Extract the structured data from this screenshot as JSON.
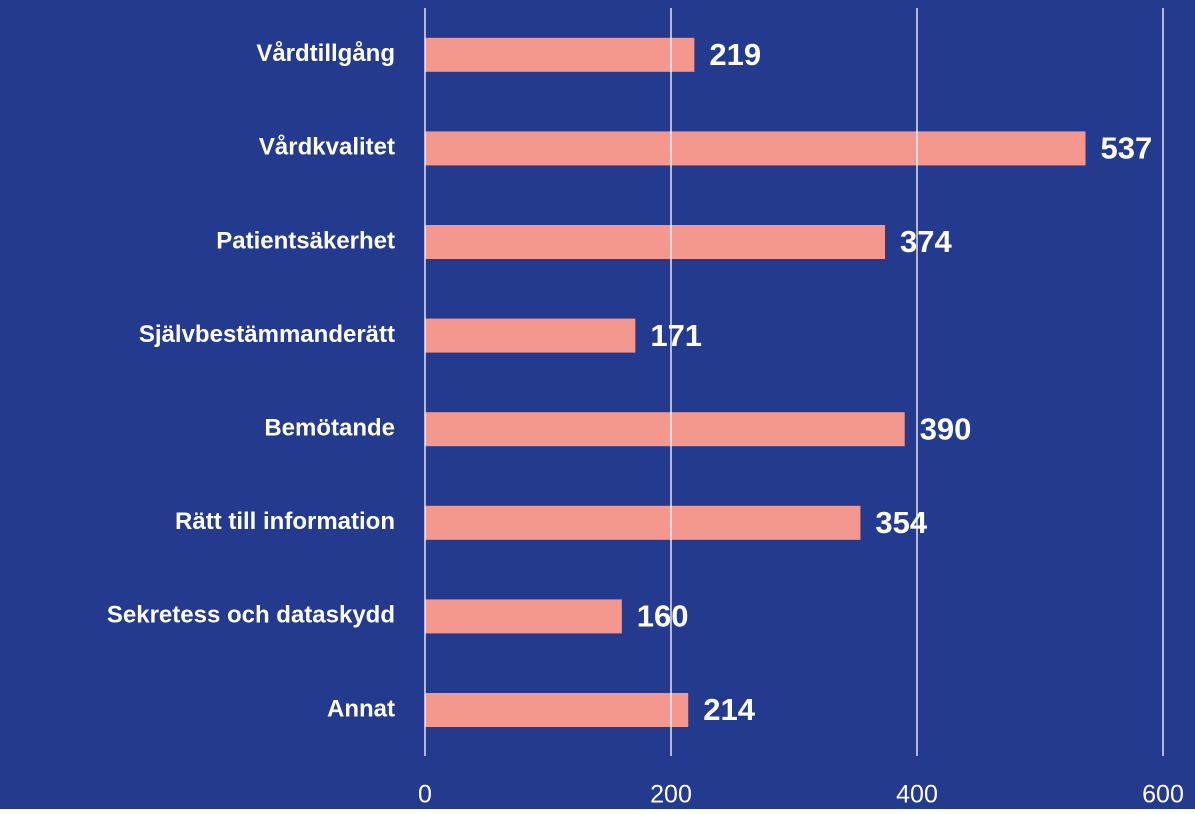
{
  "chart_data": {
    "type": "bar",
    "orientation": "horizontal",
    "categories": [
      "Vårdtillgång",
      "Vårdkvalitet",
      "Patientsäkerhet",
      "Självbestämmanderätt",
      "Bemötande",
      "Rätt till information",
      "Sekretess och dataskydd",
      "Annat"
    ],
    "values": [
      219,
      537,
      374,
      171,
      390,
      354,
      160,
      214
    ],
    "color": "#f4988f",
    "background": "#233a8f",
    "xlim": [
      0,
      600
    ],
    "xticks": [
      0,
      200,
      400,
      600
    ],
    "grid": true
  }
}
